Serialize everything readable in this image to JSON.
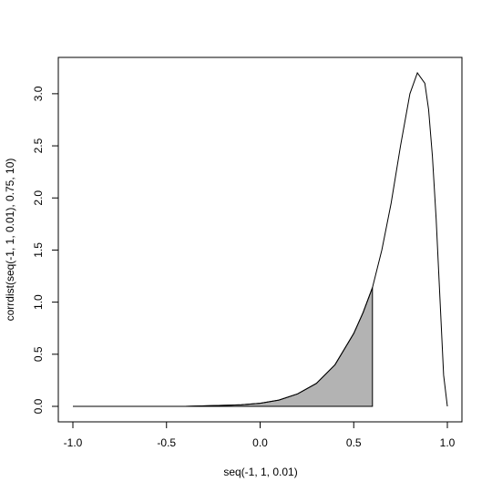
{
  "chart_data": {
    "type": "line",
    "title": "",
    "xlabel": "seq(-1, 1, 0.01)",
    "ylabel": "corrdist(seq(-1, 1, 0.01), 0.75, 10)",
    "xlim": [
      -1.0,
      1.0
    ],
    "ylim": [
      0.0,
      3.2
    ],
    "x_ticks": [
      -1.0,
      -0.5,
      0.0,
      0.5,
      1.0
    ],
    "x_tick_labels": [
      "-1.0",
      "-0.5",
      "0.0",
      "0.5",
      "1.0"
    ],
    "y_ticks": [
      0.0,
      0.5,
      1.0,
      1.5,
      2.0,
      2.5,
      3.0
    ],
    "y_tick_labels": [
      "0.0",
      "0.5",
      "1.0",
      "1.5",
      "2.0",
      "2.5",
      "3.0"
    ],
    "grid": false,
    "colors": {
      "line": "#000000",
      "shade": "#b3b3b3"
    },
    "series": [
      {
        "x": [
          -1.0,
          -0.8,
          -0.6,
          -0.4,
          -0.2,
          -0.1,
          0.0,
          0.1,
          0.2,
          0.3,
          0.4,
          0.5,
          0.55,
          0.6,
          0.65,
          0.7,
          0.75,
          0.8,
          0.84,
          0.88,
          0.9,
          0.92,
          0.94,
          0.96,
          0.98,
          1.0
        ],
        "y": [
          0.0,
          0.0,
          0.0,
          0.0,
          0.01,
          0.015,
          0.03,
          0.06,
          0.12,
          0.22,
          0.4,
          0.7,
          0.9,
          1.14,
          1.5,
          1.95,
          2.5,
          3.0,
          3.2,
          3.1,
          2.85,
          2.4,
          1.8,
          1.05,
          0.3,
          0.0
        ]
      }
    ],
    "shaded_region": {
      "x_from": -1.0,
      "x_to": 0.6
    }
  }
}
